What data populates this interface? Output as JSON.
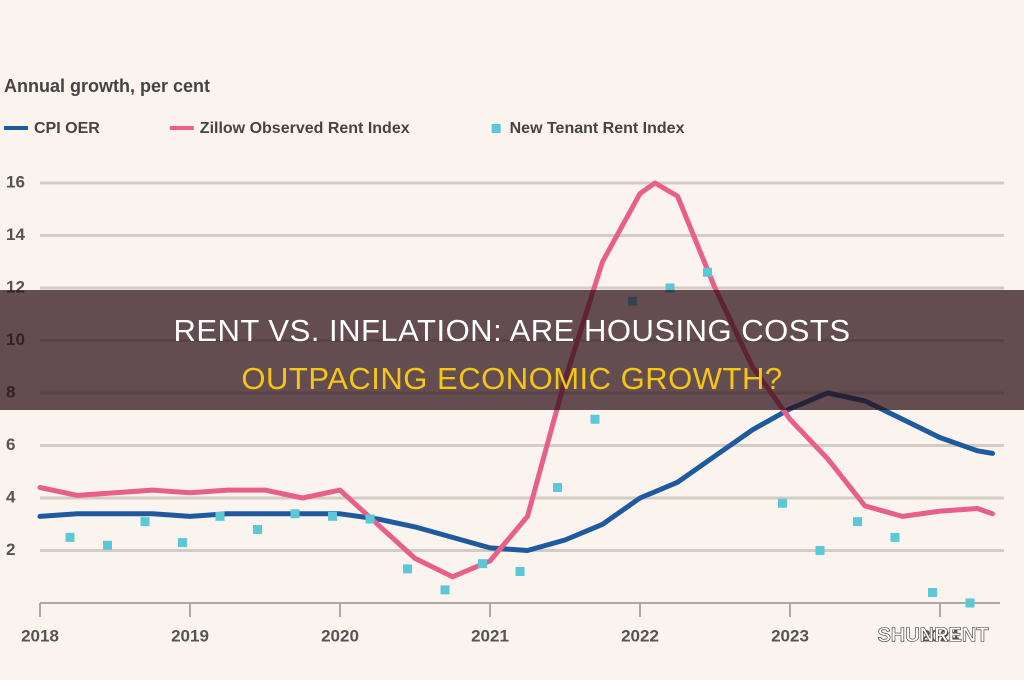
{
  "chart_data": {
    "type": "line",
    "title": [
      "RENT VS. INFLATION: ARE HOUSING COSTS",
      "OUTPACING ECONOMIC GROWTH?"
    ],
    "subtitle": "Annual growth, per cent",
    "watermark": "SHUNRENT",
    "xlim": [
      2018,
      2024.4
    ],
    "xticks": [
      2018,
      2019,
      2020,
      2021,
      2022,
      2023,
      2024
    ],
    "ylim": [
      0,
      16
    ],
    "yticks": [
      2,
      4,
      6,
      8,
      10,
      12,
      14,
      16
    ],
    "grid": true,
    "series": [
      {
        "name": "CPI OER",
        "color": "#1f5a9e",
        "type": "line",
        "x": [
          2018,
          2018.25,
          2018.5,
          2018.75,
          2019,
          2019.25,
          2019.5,
          2019.75,
          2020,
          2020.25,
          2020.5,
          2020.75,
          2021,
          2021.25,
          2021.5,
          2021.75,
          2022,
          2022.25,
          2022.5,
          2022.75,
          2023,
          2023.25,
          2023.5,
          2023.75,
          2024,
          2024.25,
          2024.35
        ],
        "values": [
          3.3,
          3.4,
          3.4,
          3.4,
          3.3,
          3.4,
          3.4,
          3.4,
          3.4,
          3.2,
          2.9,
          2.5,
          2.1,
          2.0,
          2.4,
          3.0,
          4.0,
          4.6,
          5.6,
          6.6,
          7.4,
          8.0,
          7.7,
          7.0,
          6.3,
          5.8,
          5.7
        ]
      },
      {
        "name": "Zillow Observed Rent Index",
        "color": "#e8608a",
        "type": "line",
        "x": [
          2018,
          2018.25,
          2018.5,
          2018.75,
          2019,
          2019.25,
          2019.5,
          2019.75,
          2020,
          2020.25,
          2020.5,
          2020.75,
          2021,
          2021.25,
          2021.5,
          2021.75,
          2022,
          2022.1,
          2022.25,
          2022.5,
          2022.75,
          2023,
          2023.25,
          2023.5,
          2023.75,
          2024,
          2024.25,
          2024.35
        ],
        "values": [
          4.4,
          4.1,
          4.2,
          4.3,
          4.2,
          4.3,
          4.3,
          4.0,
          4.3,
          3.0,
          1.7,
          1.0,
          1.6,
          3.3,
          8.5,
          13.0,
          15.6,
          16.0,
          15.5,
          12.0,
          9.0,
          7.0,
          5.5,
          3.7,
          3.3,
          3.5,
          3.6,
          3.4
        ]
      },
      {
        "name": "New Tenant Rent Index",
        "color": "#5bc8d8",
        "type": "scatter",
        "x": [
          2018.2,
          2018.45,
          2018.7,
          2018.95,
          2019.2,
          2019.45,
          2019.7,
          2019.95,
          2020.2,
          2020.45,
          2020.7,
          2020.95,
          2021.2,
          2021.45,
          2021.7,
          2021.95,
          2022.2,
          2022.45,
          2022.95,
          2023.2,
          2023.45,
          2023.7,
          2023.95,
          2024.2
        ],
        "values": [
          2.5,
          2.2,
          3.1,
          2.3,
          3.3,
          2.8,
          3.4,
          3.3,
          3.2,
          1.3,
          0.5,
          1.5,
          1.2,
          4.4,
          7.0,
          11.5,
          12.0,
          12.6,
          3.8,
          2.0,
          3.1,
          2.5,
          0.4,
          0.0
        ]
      }
    ]
  }
}
